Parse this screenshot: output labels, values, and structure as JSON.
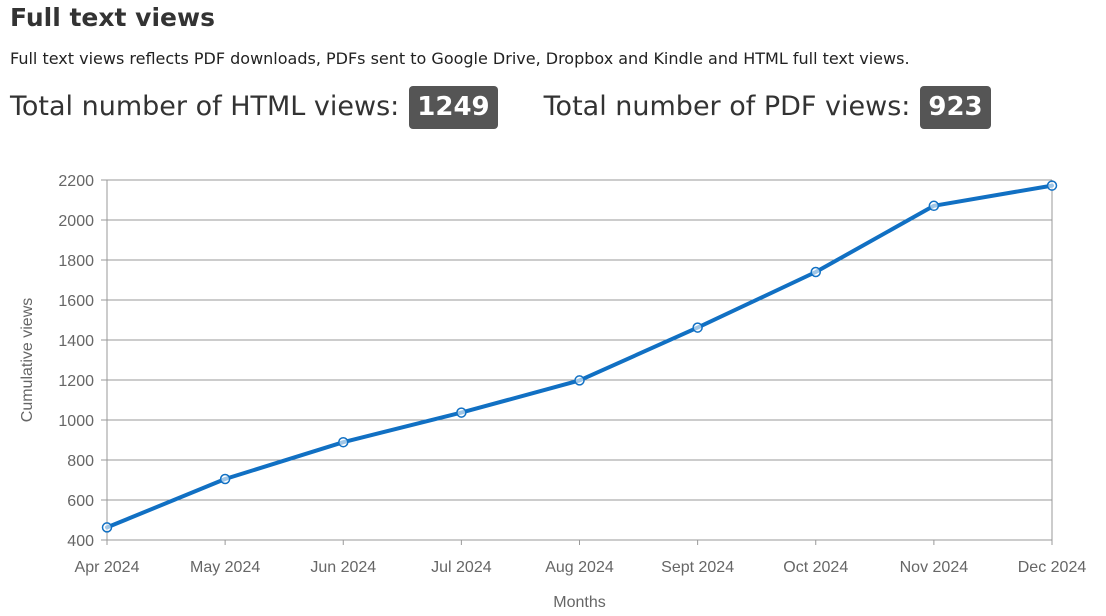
{
  "header": {
    "title": "Full text views",
    "description": "Full text views reflects PDF downloads, PDFs sent to Google Drive, Dropbox and Kindle and HTML full text views."
  },
  "totals": {
    "html_label": "Total number of HTML views:",
    "html_value": "1249",
    "pdf_label": "Total number of PDF views:",
    "pdf_value": "923"
  },
  "colors": {
    "line": "#1170c3",
    "badge": "#555555",
    "grid": "#999999",
    "axis_text": "#666666"
  },
  "chart_data": {
    "type": "line",
    "categories": [
      "Apr 2024",
      "May 2024",
      "Jun 2024",
      "Jul 2024",
      "Aug 2024",
      "Sept 2024",
      "Oct 2024",
      "Nov 2024",
      "Dec 2024"
    ],
    "series": [
      {
        "values": [
          463,
          705,
          889,
          1037,
          1198,
          1462,
          1740,
          2071,
          2172
        ]
      }
    ],
    "xlabel": "Months",
    "ylabel": "Cumulative views",
    "ylim": [
      400,
      2200
    ],
    "yticks": [
      400,
      600,
      800,
      1000,
      1200,
      1400,
      1600,
      1800,
      2000,
      2200
    ],
    "grid": true,
    "legend": "none"
  }
}
